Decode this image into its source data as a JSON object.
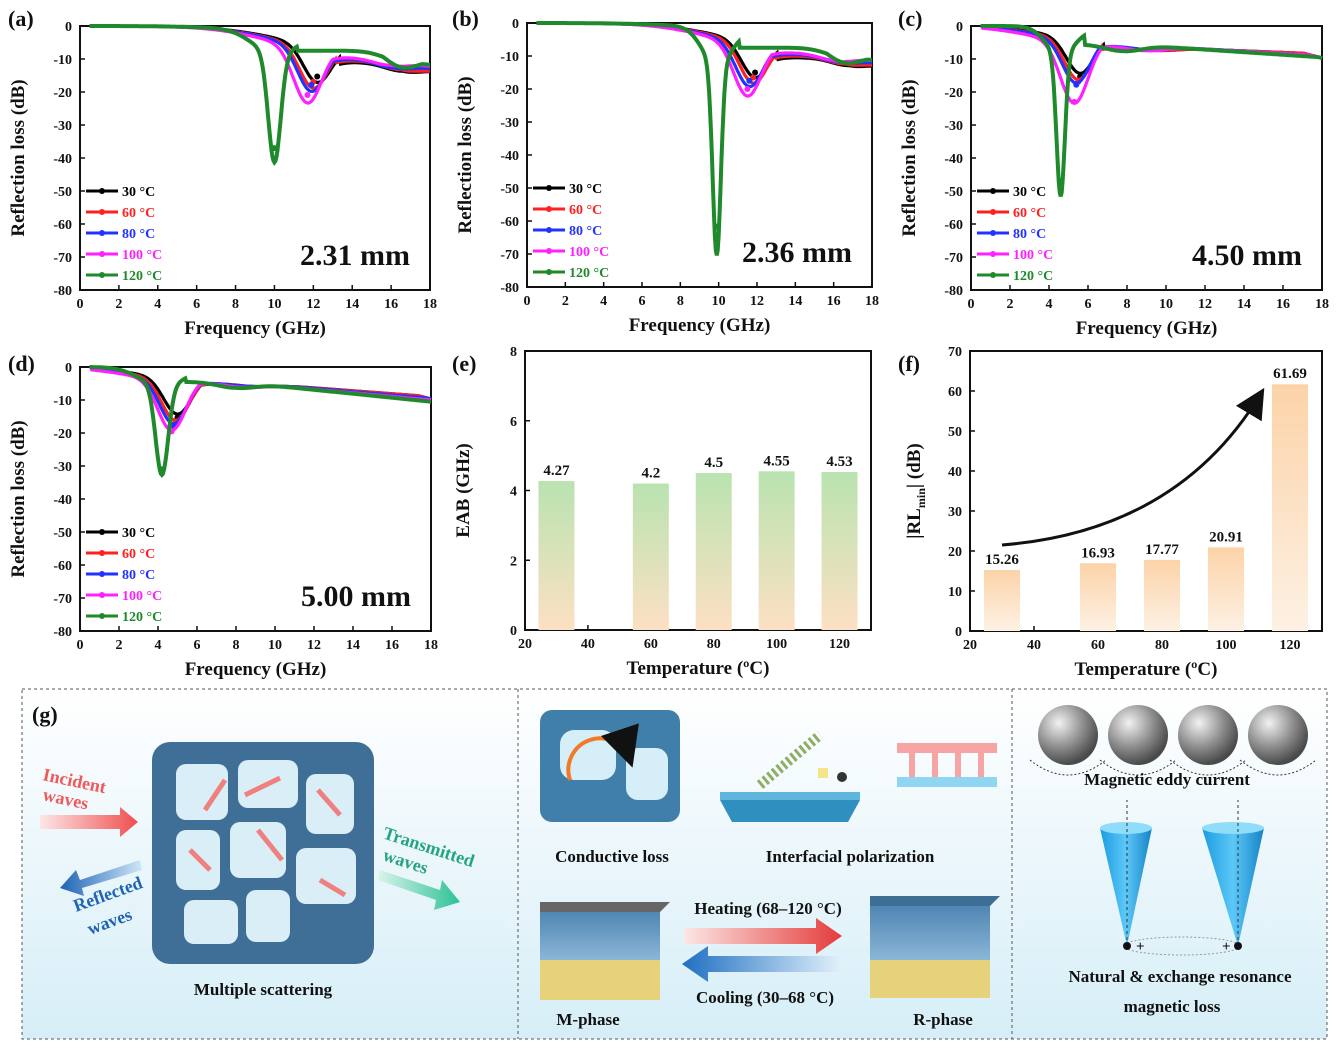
{
  "colors": {
    "series": [
      "#000000",
      "#ff2020",
      "#2233ff",
      "#ff20ff",
      "#1f8a2b"
    ],
    "bar_top_green": "#b9e3b0",
    "bar_bottom_peach": "#fde0c4",
    "bar_peach": "#fcd3a8",
    "panel_bg_top": "#ffffff",
    "panel_bg_bottom": "#d6eef7"
  },
  "chart_data": [
    {
      "panel": "(a)",
      "type": "line",
      "xlabel": "Frequency (GHz)",
      "ylabel": "Reflection loss (dB)",
      "xlim": [
        0,
        18
      ],
      "ylim": [
        -80,
        0
      ],
      "xticks": [
        "0",
        "2",
        "4",
        "6",
        "8",
        "10",
        "12",
        "14",
        "16",
        "18"
      ],
      "yticks": [
        "0",
        "-10",
        "-20",
        "-30",
        "-40",
        "-50",
        "-60",
        "-70",
        "-80"
      ],
      "annotation": "2.31 mm",
      "series": [
        {
          "name": "30 °C",
          "min_x": 12.2,
          "min_y": -15.3,
          "sec_x": 16.6,
          "sec_y": -15.5,
          "hump": -11,
          "end": -13
        },
        {
          "name": "60 °C",
          "min_x": 12.0,
          "min_y": -16.9,
          "sec_x": 16.5,
          "sec_y": -15.0,
          "hump": -10.5,
          "end": -13
        },
        {
          "name": "80 °C",
          "min_x": 11.9,
          "min_y": -17.8,
          "sec_x": 16.2,
          "sec_y": -14.5,
          "hump": -10,
          "end": -12.5
        },
        {
          "name": "100 °C",
          "min_x": 11.7,
          "min_y": -20.9,
          "sec_x": 16.0,
          "sec_y": -13.5,
          "hump": -9.5,
          "end": -12
        },
        {
          "name": "120 °C",
          "min_x": 10.0,
          "min_y": -37.0,
          "sec_x": 16.5,
          "sec_y": -12.5,
          "hump": -7.5,
          "end": -11
        }
      ]
    },
    {
      "panel": "(b)",
      "type": "line",
      "xlabel": "Frequency (GHz)",
      "ylabel": "Reflection loss (dB)",
      "xlim": [
        0,
        18
      ],
      "ylim": [
        -80,
        0
      ],
      "xticks": [
        "0",
        "2",
        "4",
        "6",
        "8",
        "10",
        "12",
        "14",
        "16",
        "18"
      ],
      "yticks": [
        "0",
        "-10",
        "-20",
        "-30",
        "-40",
        "-50",
        "-60",
        "-70",
        "-80"
      ],
      "annotation": "2.36 mm",
      "series": [
        {
          "name": "30 °C",
          "min_x": 11.9,
          "min_y": -15.0,
          "sec_x": 16.8,
          "sec_y": -14.5,
          "hump": -10.5,
          "end": -12
        },
        {
          "name": "60 °C",
          "min_x": 11.8,
          "min_y": -16.5,
          "sec_x": 16.6,
          "sec_y": -14.0,
          "hump": -10,
          "end": -12
        },
        {
          "name": "80 °C",
          "min_x": 11.6,
          "min_y": -17.5,
          "sec_x": 16.4,
          "sec_y": -13.5,
          "hump": -9.5,
          "end": -11.5
        },
        {
          "name": "100 °C",
          "min_x": 11.5,
          "min_y": -20.0,
          "sec_x": 16.2,
          "sec_y": -13.0,
          "hump": -9,
          "end": -11
        },
        {
          "name": "120 °C",
          "min_x": 9.9,
          "min_y": -61.7,
          "sec_x": 16.5,
          "sec_y": -12.0,
          "hump": -7.5,
          "end": -10.5
        }
      ]
    },
    {
      "panel": "(c)",
      "type": "line",
      "xlabel": "Frequency (GHz)",
      "ylabel": "Reflection loss (dB)",
      "xlim": [
        0,
        18
      ],
      "ylim": [
        -80,
        0
      ],
      "xticks": [
        "0",
        "2",
        "4",
        "6",
        "8",
        "10",
        "12",
        "14",
        "16",
        "18"
      ],
      "yticks": [
        "0",
        "-10",
        "-20",
        "-30",
        "-40",
        "-50",
        "-60",
        "-70",
        "-80"
      ],
      "annotation": "4.50 mm",
      "series": [
        {
          "name": "30 °C",
          "min_x": 5.6,
          "min_y": -15.3,
          "sec_x": 9.6,
          "sec_y": -8.0,
          "hump": -6.5,
          "end": -8.5
        },
        {
          "name": "60 °C",
          "min_x": 5.5,
          "min_y": -16.9,
          "sec_x": 9.4,
          "sec_y": -8.0,
          "hump": -6.5,
          "end": -8.5
        },
        {
          "name": "80 °C",
          "min_x": 5.4,
          "min_y": -17.8,
          "sec_x": 9.2,
          "sec_y": -8.0,
          "hump": -6,
          "end": -9
        },
        {
          "name": "100 °C",
          "min_x": 5.3,
          "min_y": -23.0,
          "sec_x": 9.0,
          "sec_y": -8.5,
          "hump": -6,
          "end": -9
        },
        {
          "name": "120 °C",
          "min_x": 4.6,
          "min_y": -47.0,
          "sec_x": 7.8,
          "sec_y": -9.0,
          "hump": -5.5,
          "end": -9.5
        }
      ]
    },
    {
      "panel": "(d)",
      "type": "line",
      "xlabel": "Frequency (GHz)",
      "ylabel": "Reflection loss (dB)",
      "xlim": [
        0,
        18
      ],
      "ylim": [
        -80,
        0
      ],
      "xticks": [
        "0",
        "2",
        "4",
        "6",
        "8",
        "10",
        "12",
        "14",
        "16",
        "18"
      ],
      "yticks": [
        "0",
        "-10",
        "-20",
        "-30",
        "-40",
        "-50",
        "-60",
        "-70",
        "-80"
      ],
      "annotation": "5.00 mm",
      "series": [
        {
          "name": "30 °C",
          "min_x": 5.0,
          "min_y": -15.3,
          "sec_x": 9.0,
          "sec_y": -6.5,
          "hump": -5,
          "end": -9
        },
        {
          "name": "60 °C",
          "min_x": 4.9,
          "min_y": -16.9,
          "sec_x": 8.8,
          "sec_y": -6.5,
          "hump": -5,
          "end": -9
        },
        {
          "name": "80 °C",
          "min_x": 4.8,
          "min_y": -17.8,
          "sec_x": 8.6,
          "sec_y": -6.5,
          "hump": -4.8,
          "end": -9.5
        },
        {
          "name": "100 °C",
          "min_x": 4.7,
          "min_y": -19.5,
          "sec_x": 8.4,
          "sec_y": -7.0,
          "hump": -4.8,
          "end": -10
        },
        {
          "name": "120 °C",
          "min_x": 4.2,
          "min_y": -31.0,
          "sec_x": 8.0,
          "sec_y": -7.5,
          "hump": -4.5,
          "end": -10.5
        }
      ]
    },
    {
      "panel": "(e)",
      "type": "bar",
      "xlabel": "Temperature (ºC)",
      "ylabel": "EAB (GHz)",
      "xlim": [
        20,
        130
      ],
      "ylim": [
        0,
        8
      ],
      "xticks": [
        "20",
        "40",
        "60",
        "80",
        "100",
        "120"
      ],
      "yticks": [
        "0",
        "2",
        "4",
        "6",
        "8"
      ],
      "x": [
        30,
        60,
        80,
        100,
        120
      ],
      "values": [
        4.27,
        4.2,
        4.5,
        4.55,
        4.53
      ],
      "labels": [
        "4.27",
        "4.2",
        "4.5",
        "4.55",
        "4.53"
      ]
    },
    {
      "panel": "(f)",
      "type": "bar",
      "xlabel": "Temperature (ºC)",
      "ylabel_main": "|RL",
      "ylabel_sub": "min",
      "ylabel_tail": "| (dB)",
      "xlim": [
        20,
        130
      ],
      "ylim": [
        0,
        70
      ],
      "xticks": [
        "20",
        "40",
        "60",
        "80",
        "100",
        "120"
      ],
      "yticks": [
        "0",
        "10",
        "20",
        "30",
        "40",
        "50",
        "60",
        "70"
      ],
      "x": [
        30,
        60,
        80,
        100,
        120
      ],
      "values": [
        15.26,
        16.93,
        17.77,
        20.91,
        61.69
      ],
      "labels": [
        "15.26",
        "16.93",
        "17.77",
        "20.91",
        "61.69"
      ]
    }
  ],
  "panel_g": {
    "label": "(g)",
    "incident": [
      "Incident",
      "waves"
    ],
    "reflected": [
      "Reflected",
      "waves"
    ],
    "transmitted": [
      "Transmitted",
      "waves"
    ],
    "multiple_scattering": "Multiple scattering",
    "conductive_loss": "Conductive loss",
    "interfacial_polarization": "Interfacial polarization",
    "heating": "Heating (68–120 °C)",
    "cooling": "Cooling (30–68 °C)",
    "m_phase": "M-phase",
    "r_phase": "R-phase",
    "eddy": "Magnetic eddy current",
    "resonance_1": "Natural & exchange resonance",
    "resonance_2": "magnetic loss",
    "plus": "+"
  }
}
